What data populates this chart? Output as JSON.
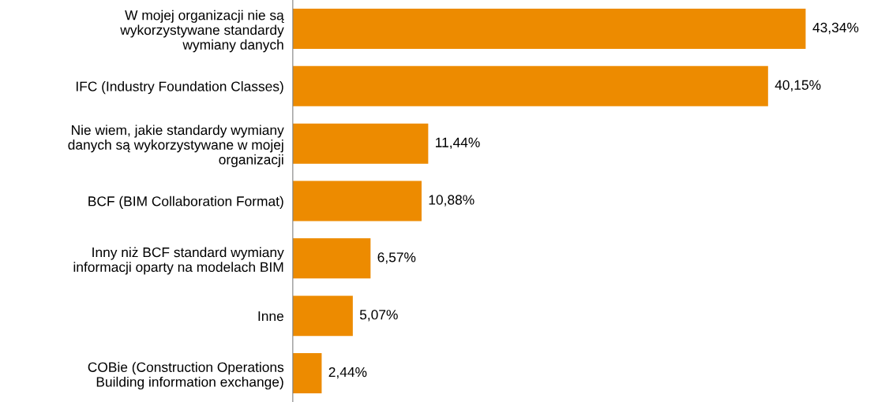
{
  "chart_data": {
    "type": "bar",
    "orientation": "horizontal",
    "categories": [
      "W mojej organizacji nie są\nwykorzystywane standardy\nwymiany danych",
      "IFC (Industry Foundation Classes)",
      "Nie wiem, jakie standardy wymiany\ndanych są wykorzystywane w mojej\norganizacji",
      "BCF (BIM Collaboration Format)",
      "Inny niż BCF standard wymiany\ninformacji oparty na modelach BIM",
      "Inne",
      "COBie (Construction Operations\nBuilding information exchange)"
    ],
    "values": [
      43.34,
      40.15,
      11.44,
      10.88,
      6.57,
      5.07,
      2.44
    ],
    "value_labels": [
      "43,34%",
      "40,15%",
      "11,44%",
      "10,88%",
      "6,57%",
      "5,07%",
      "2,44%"
    ],
    "color": "#ed8b00",
    "tick_labels": "y",
    "grid": false,
    "legend": false
  }
}
